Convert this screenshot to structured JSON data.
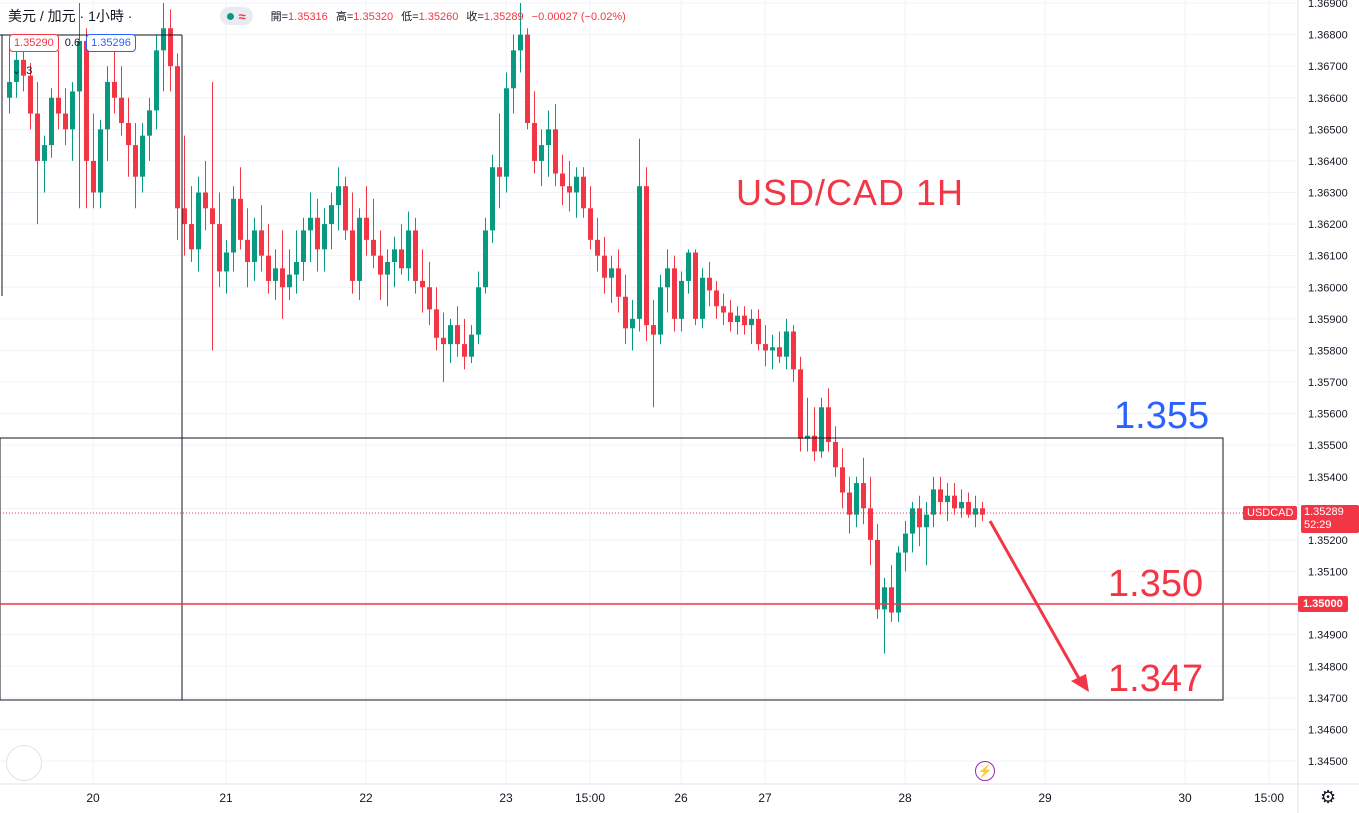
{
  "header": {
    "symbol": "美元 / 加元 · 1小時 ·",
    "ohlc": {
      "open_label": "開=",
      "open": "1.35316",
      "high_label": "高=",
      "high": "1.35320",
      "low_label": "低=",
      "low": "1.35260",
      "close_label": "收=",
      "close": "1.35289",
      "change": "−0.00027 (−0.02%)"
    }
  },
  "trade": {
    "sell": "1.35290",
    "spread": "0.6",
    "buy": "1.35296"
  },
  "indicators": {
    "count": "3"
  },
  "annotations": {
    "title": "USD/CAD 1H",
    "level_resistance": "1.355",
    "level_support": "1.350",
    "level_target": "1.347"
  },
  "price_scale": {
    "symbol_tag": "USDCAD",
    "last_price": "1.35289",
    "countdown": "52:29",
    "line_price": "1.35000"
  },
  "colors": {
    "up": "#089981",
    "down": "#f23645",
    "blue": "#2962ff",
    "grid": "#f0f3fa"
  },
  "chart_data": {
    "type": "candlestick",
    "title": "USD/CAD 1H",
    "ylim": [
      1.3445,
      1.3692
    ],
    "y_ticks": [
      "1.36900",
      "1.36800",
      "1.36700",
      "1.36600",
      "1.36500",
      "1.36400",
      "1.36300",
      "1.36200",
      "1.36100",
      "1.36000",
      "1.35900",
      "1.35800",
      "1.35700",
      "1.35600",
      "1.35500",
      "1.35400",
      "1.35300",
      "1.35200",
      "1.35100",
      "1.35000",
      "1.34900",
      "1.34800",
      "1.34700",
      "1.34600",
      "1.34500"
    ],
    "x_ticks": [
      {
        "label": "20",
        "bar": 12
      },
      {
        "label": "21",
        "bar": 31
      },
      {
        "label": "22",
        "bar": 51
      },
      {
        "label": "23",
        "bar": 71
      },
      {
        "label": "15:00",
        "bar": 83
      },
      {
        "label": "26",
        "bar": 96
      },
      {
        "label": "27",
        "bar": 108
      },
      {
        "label": "28",
        "bar": 128
      },
      {
        "label": "29",
        "bar": 148
      },
      {
        "label": "30",
        "bar": 168
      },
      {
        "label": "15:00",
        "bar": 180
      }
    ],
    "ohlc": [
      [
        1.366,
        1.3678,
        1.3655,
        1.3665
      ],
      [
        1.3665,
        1.3676,
        1.366,
        1.3672
      ],
      [
        1.3672,
        1.3675,
        1.3662,
        1.3667
      ],
      [
        1.3667,
        1.3671,
        1.365,
        1.3655
      ],
      [
        1.3655,
        1.3665,
        1.362,
        1.364
      ],
      [
        1.364,
        1.3648,
        1.363,
        1.3645
      ],
      [
        1.3645,
        1.3663,
        1.3641,
        1.366
      ],
      [
        1.366,
        1.3675,
        1.365,
        1.3655
      ],
      [
        1.3655,
        1.3663,
        1.3645,
        1.365
      ],
      [
        1.365,
        1.3665,
        1.364,
        1.3662
      ],
      [
        1.3662,
        1.369,
        1.3625,
        1.3678
      ],
      [
        1.3678,
        1.3682,
        1.3625,
        1.364
      ],
      [
        1.364,
        1.3655,
        1.3625,
        1.363
      ],
      [
        1.363,
        1.3653,
        1.3625,
        1.365
      ],
      [
        1.365,
        1.367,
        1.364,
        1.3665
      ],
      [
        1.3665,
        1.3675,
        1.3655,
        1.366
      ],
      [
        1.366,
        1.367,
        1.3648,
        1.3652
      ],
      [
        1.3652,
        1.366,
        1.3635,
        1.3645
      ],
      [
        1.3645,
        1.3652,
        1.3625,
        1.3635
      ],
      [
        1.3635,
        1.3652,
        1.363,
        1.3648
      ],
      [
        1.3648,
        1.366,
        1.364,
        1.3656
      ],
      [
        1.3656,
        1.368,
        1.365,
        1.3675
      ],
      [
        1.3675,
        1.369,
        1.3662,
        1.3682
      ],
      [
        1.3682,
        1.3688,
        1.3662,
        1.367
      ],
      [
        1.367,
        1.3674,
        1.3615,
        1.3625
      ],
      [
        1.3625,
        1.3648,
        1.361,
        1.362
      ],
      [
        1.362,
        1.3632,
        1.3608,
        1.3612
      ],
      [
        1.3612,
        1.3635,
        1.3605,
        1.363
      ],
      [
        1.363,
        1.364,
        1.3618,
        1.3625
      ],
      [
        1.3625,
        1.3665,
        1.358,
        1.362
      ],
      [
        1.362,
        1.363,
        1.36,
        1.3605
      ],
      [
        1.3605,
        1.3615,
        1.3598,
        1.3611
      ],
      [
        1.3611,
        1.3632,
        1.3605,
        1.3628
      ],
      [
        1.3628,
        1.3638,
        1.3612,
        1.3615
      ],
      [
        1.3615,
        1.3625,
        1.36,
        1.3608
      ],
      [
        1.3608,
        1.3622,
        1.3602,
        1.3618
      ],
      [
        1.3618,
        1.3626,
        1.3605,
        1.361
      ],
      [
        1.361,
        1.362,
        1.3598,
        1.3602
      ],
      [
        1.3602,
        1.3612,
        1.3596,
        1.3606
      ],
      [
        1.3606,
        1.3618,
        1.359,
        1.36
      ],
      [
        1.36,
        1.3612,
        1.3596,
        1.3604
      ],
      [
        1.3604,
        1.3618,
        1.3598,
        1.3608
      ],
      [
        1.3608,
        1.3622,
        1.3602,
        1.3618
      ],
      [
        1.3618,
        1.363,
        1.3608,
        1.3622
      ],
      [
        1.3622,
        1.3628,
        1.3605,
        1.3612
      ],
      [
        1.3612,
        1.3625,
        1.3605,
        1.362
      ],
      [
        1.362,
        1.363,
        1.3612,
        1.3626
      ],
      [
        1.3626,
        1.3638,
        1.3618,
        1.3632
      ],
      [
        1.3632,
        1.3635,
        1.3615,
        1.3618
      ],
      [
        1.3618,
        1.363,
        1.3598,
        1.3602
      ],
      [
        1.3602,
        1.3625,
        1.3596,
        1.3622
      ],
      [
        1.3622,
        1.3632,
        1.361,
        1.3615
      ],
      [
        1.3615,
        1.3628,
        1.3606,
        1.361
      ],
      [
        1.361,
        1.3618,
        1.3596,
        1.3604
      ],
      [
        1.3604,
        1.3612,
        1.3594,
        1.3608
      ],
      [
        1.3608,
        1.3616,
        1.36,
        1.3612
      ],
      [
        1.3612,
        1.362,
        1.3604,
        1.3606
      ],
      [
        1.3606,
        1.3624,
        1.3602,
        1.3618
      ],
      [
        1.3618,
        1.3622,
        1.3598,
        1.3602
      ],
      [
        1.3602,
        1.3612,
        1.3592,
        1.36
      ],
      [
        1.36,
        1.3608,
        1.3588,
        1.3593
      ],
      [
        1.3593,
        1.36,
        1.358,
        1.3584
      ],
      [
        1.3584,
        1.3592,
        1.357,
        1.3582
      ],
      [
        1.3582,
        1.359,
        1.3576,
        1.3588
      ],
      [
        1.3588,
        1.3594,
        1.3578,
        1.3582
      ],
      [
        1.3582,
        1.359,
        1.3574,
        1.3578
      ],
      [
        1.3578,
        1.3588,
        1.3576,
        1.3585
      ],
      [
        1.3585,
        1.3605,
        1.3582,
        1.36
      ],
      [
        1.36,
        1.3622,
        1.3598,
        1.3618
      ],
      [
        1.3618,
        1.3642,
        1.3614,
        1.3638
      ],
      [
        1.3638,
        1.3655,
        1.3625,
        1.3635
      ],
      [
        1.3635,
        1.3668,
        1.363,
        1.3663
      ],
      [
        1.3663,
        1.368,
        1.3655,
        1.3675
      ],
      [
        1.3675,
        1.369,
        1.3668,
        1.368
      ],
      [
        1.368,
        1.3682,
        1.365,
        1.3652
      ],
      [
        1.3652,
        1.3662,
        1.3636,
        1.364
      ],
      [
        1.364,
        1.365,
        1.3632,
        1.3645
      ],
      [
        1.3645,
        1.3656,
        1.3635,
        1.365
      ],
      [
        1.365,
        1.3658,
        1.3632,
        1.3636
      ],
      [
        1.3636,
        1.3642,
        1.3626,
        1.3632
      ],
      [
        1.3632,
        1.364,
        1.3624,
        1.363
      ],
      [
        1.363,
        1.3638,
        1.3622,
        1.3635
      ],
      [
        1.3635,
        1.3638,
        1.3622,
        1.3625
      ],
      [
        1.3625,
        1.3632,
        1.3612,
        1.3615
      ],
      [
        1.3615,
        1.3622,
        1.3605,
        1.361
      ],
      [
        1.361,
        1.3616,
        1.3598,
        1.3603
      ],
      [
        1.3603,
        1.361,
        1.3595,
        1.3606
      ],
      [
        1.3606,
        1.3612,
        1.3592,
        1.3597
      ],
      [
        1.3597,
        1.3604,
        1.3582,
        1.3587
      ],
      [
        1.3587,
        1.3596,
        1.358,
        1.359
      ],
      [
        1.359,
        1.3647,
        1.3586,
        1.3632
      ],
      [
        1.3632,
        1.3638,
        1.3583,
        1.3588
      ],
      [
        1.3588,
        1.3596,
        1.3562,
        1.3585
      ],
      [
        1.3585,
        1.3604,
        1.3582,
        1.36
      ],
      [
        1.36,
        1.3612,
        1.3592,
        1.3606
      ],
      [
        1.3606,
        1.361,
        1.3586,
        1.359
      ],
      [
        1.359,
        1.3605,
        1.3586,
        1.3602
      ],
      [
        1.3602,
        1.3612,
        1.3598,
        1.3611
      ],
      [
        1.3611,
        1.3612,
        1.3588,
        1.359
      ],
      [
        1.359,
        1.3606,
        1.3587,
        1.3603
      ],
      [
        1.3603,
        1.3608,
        1.3594,
        1.3599
      ],
      [
        1.3599,
        1.3602,
        1.359,
        1.3594
      ],
      [
        1.3594,
        1.3598,
        1.3588,
        1.3592
      ],
      [
        1.3592,
        1.3596,
        1.3586,
        1.3589
      ],
      [
        1.3589,
        1.3594,
        1.3585,
        1.3591
      ],
      [
        1.3591,
        1.3594,
        1.3585,
        1.3588
      ],
      [
        1.3588,
        1.3593,
        1.3582,
        1.359
      ],
      [
        1.359,
        1.3593,
        1.358,
        1.3582
      ],
      [
        1.3582,
        1.3588,
        1.3575,
        1.358
      ],
      [
        1.358,
        1.3585,
        1.3574,
        1.3581
      ],
      [
        1.3581,
        1.3586,
        1.3576,
        1.3578
      ],
      [
        1.3578,
        1.359,
        1.3574,
        1.3586
      ],
      [
        1.3586,
        1.3588,
        1.357,
        1.3574
      ],
      [
        1.3574,
        1.3578,
        1.3548,
        1.3552
      ],
      [
        1.3552,
        1.3565,
        1.3548,
        1.3553
      ],
      [
        1.3553,
        1.3562,
        1.3545,
        1.3548
      ],
      [
        1.3548,
        1.3565,
        1.3546,
        1.3562
      ],
      [
        1.3562,
        1.3568,
        1.3548,
        1.3551
      ],
      [
        1.3551,
        1.3556,
        1.354,
        1.3543
      ],
      [
        1.3543,
        1.3549,
        1.353,
        1.3535
      ],
      [
        1.3535,
        1.354,
        1.3522,
        1.3528
      ],
      [
        1.3528,
        1.354,
        1.3524,
        1.3538
      ],
      [
        1.3538,
        1.3546,
        1.3525,
        1.353
      ],
      [
        1.353,
        1.354,
        1.3512,
        1.352
      ],
      [
        1.352,
        1.3525,
        1.3495,
        1.3498
      ],
      [
        1.3498,
        1.3508,
        1.3484,
        1.3505
      ],
      [
        1.3505,
        1.3512,
        1.3494,
        1.3497
      ],
      [
        1.3497,
        1.3518,
        1.3494,
        1.3516
      ],
      [
        1.3516,
        1.3526,
        1.351,
        1.3522
      ],
      [
        1.3522,
        1.3532,
        1.3516,
        1.353
      ],
      [
        1.353,
        1.3534,
        1.3518,
        1.3524
      ],
      [
        1.3524,
        1.3532,
        1.3512,
        1.3528
      ],
      [
        1.3528,
        1.354,
        1.3524,
        1.3536
      ],
      [
        1.3536,
        1.354,
        1.3528,
        1.3532
      ],
      [
        1.3532,
        1.3538,
        1.3526,
        1.3534
      ],
      [
        1.3534,
        1.3538,
        1.3528,
        1.353
      ],
      [
        1.353,
        1.3536,
        1.3527,
        1.3532
      ],
      [
        1.3532,
        1.3535,
        1.3527,
        1.3528
      ],
      [
        1.3528,
        1.3534,
        1.3524,
        1.353
      ],
      [
        1.353,
        1.3532,
        1.3526,
        1.3528
      ]
    ]
  }
}
